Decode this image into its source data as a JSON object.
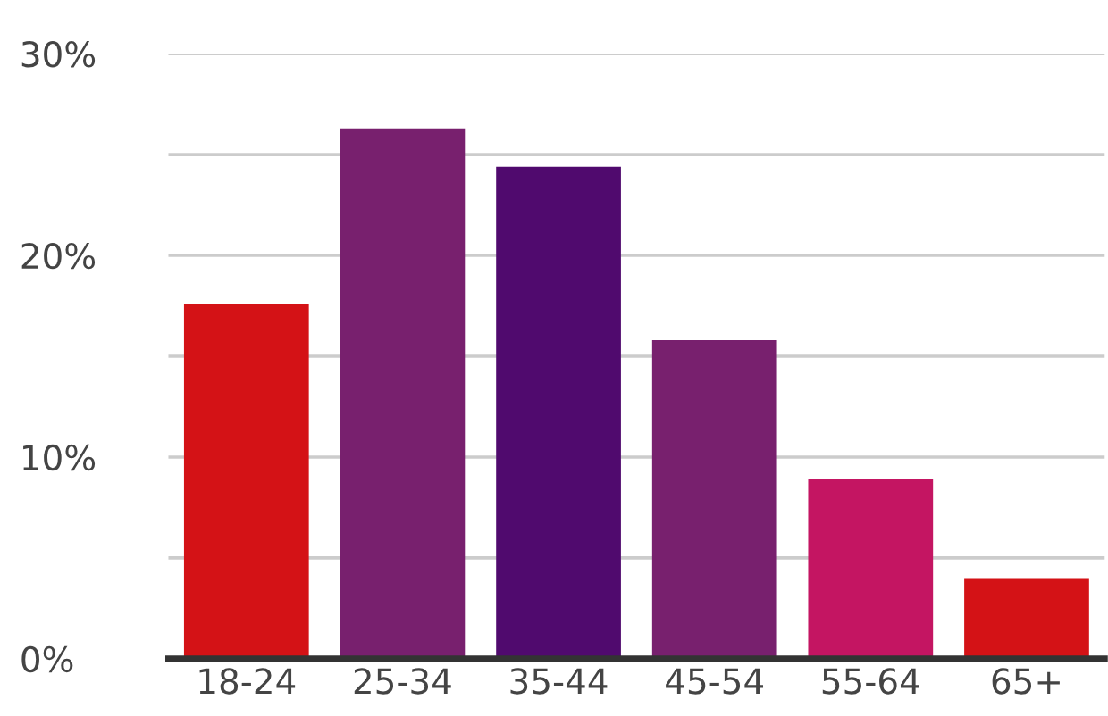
{
  "chart_data": {
    "type": "bar",
    "categories": [
      "18-24",
      "25-34",
      "35-44",
      "45-54",
      "55-64",
      "65+"
    ],
    "values": [
      17.6,
      26.3,
      24.4,
      15.8,
      8.9,
      4
    ],
    "colors": [
      "#d41216",
      "#78206e",
      "#500a6e",
      "#78206e",
      "#c41562",
      "#d41216"
    ],
    "ylim": [
      0,
      30
    ],
    "yticks": [
      {
        "value": 0,
        "label": "0%"
      },
      {
        "value": 5,
        "label": null
      },
      {
        "value": 10,
        "label": "10%"
      },
      {
        "value": 15,
        "label": null
      },
      {
        "value": 20,
        "label": "20%"
      },
      {
        "value": 25,
        "label": null
      },
      {
        "value": 30,
        "label": "30%"
      }
    ],
    "grid": "y"
  }
}
